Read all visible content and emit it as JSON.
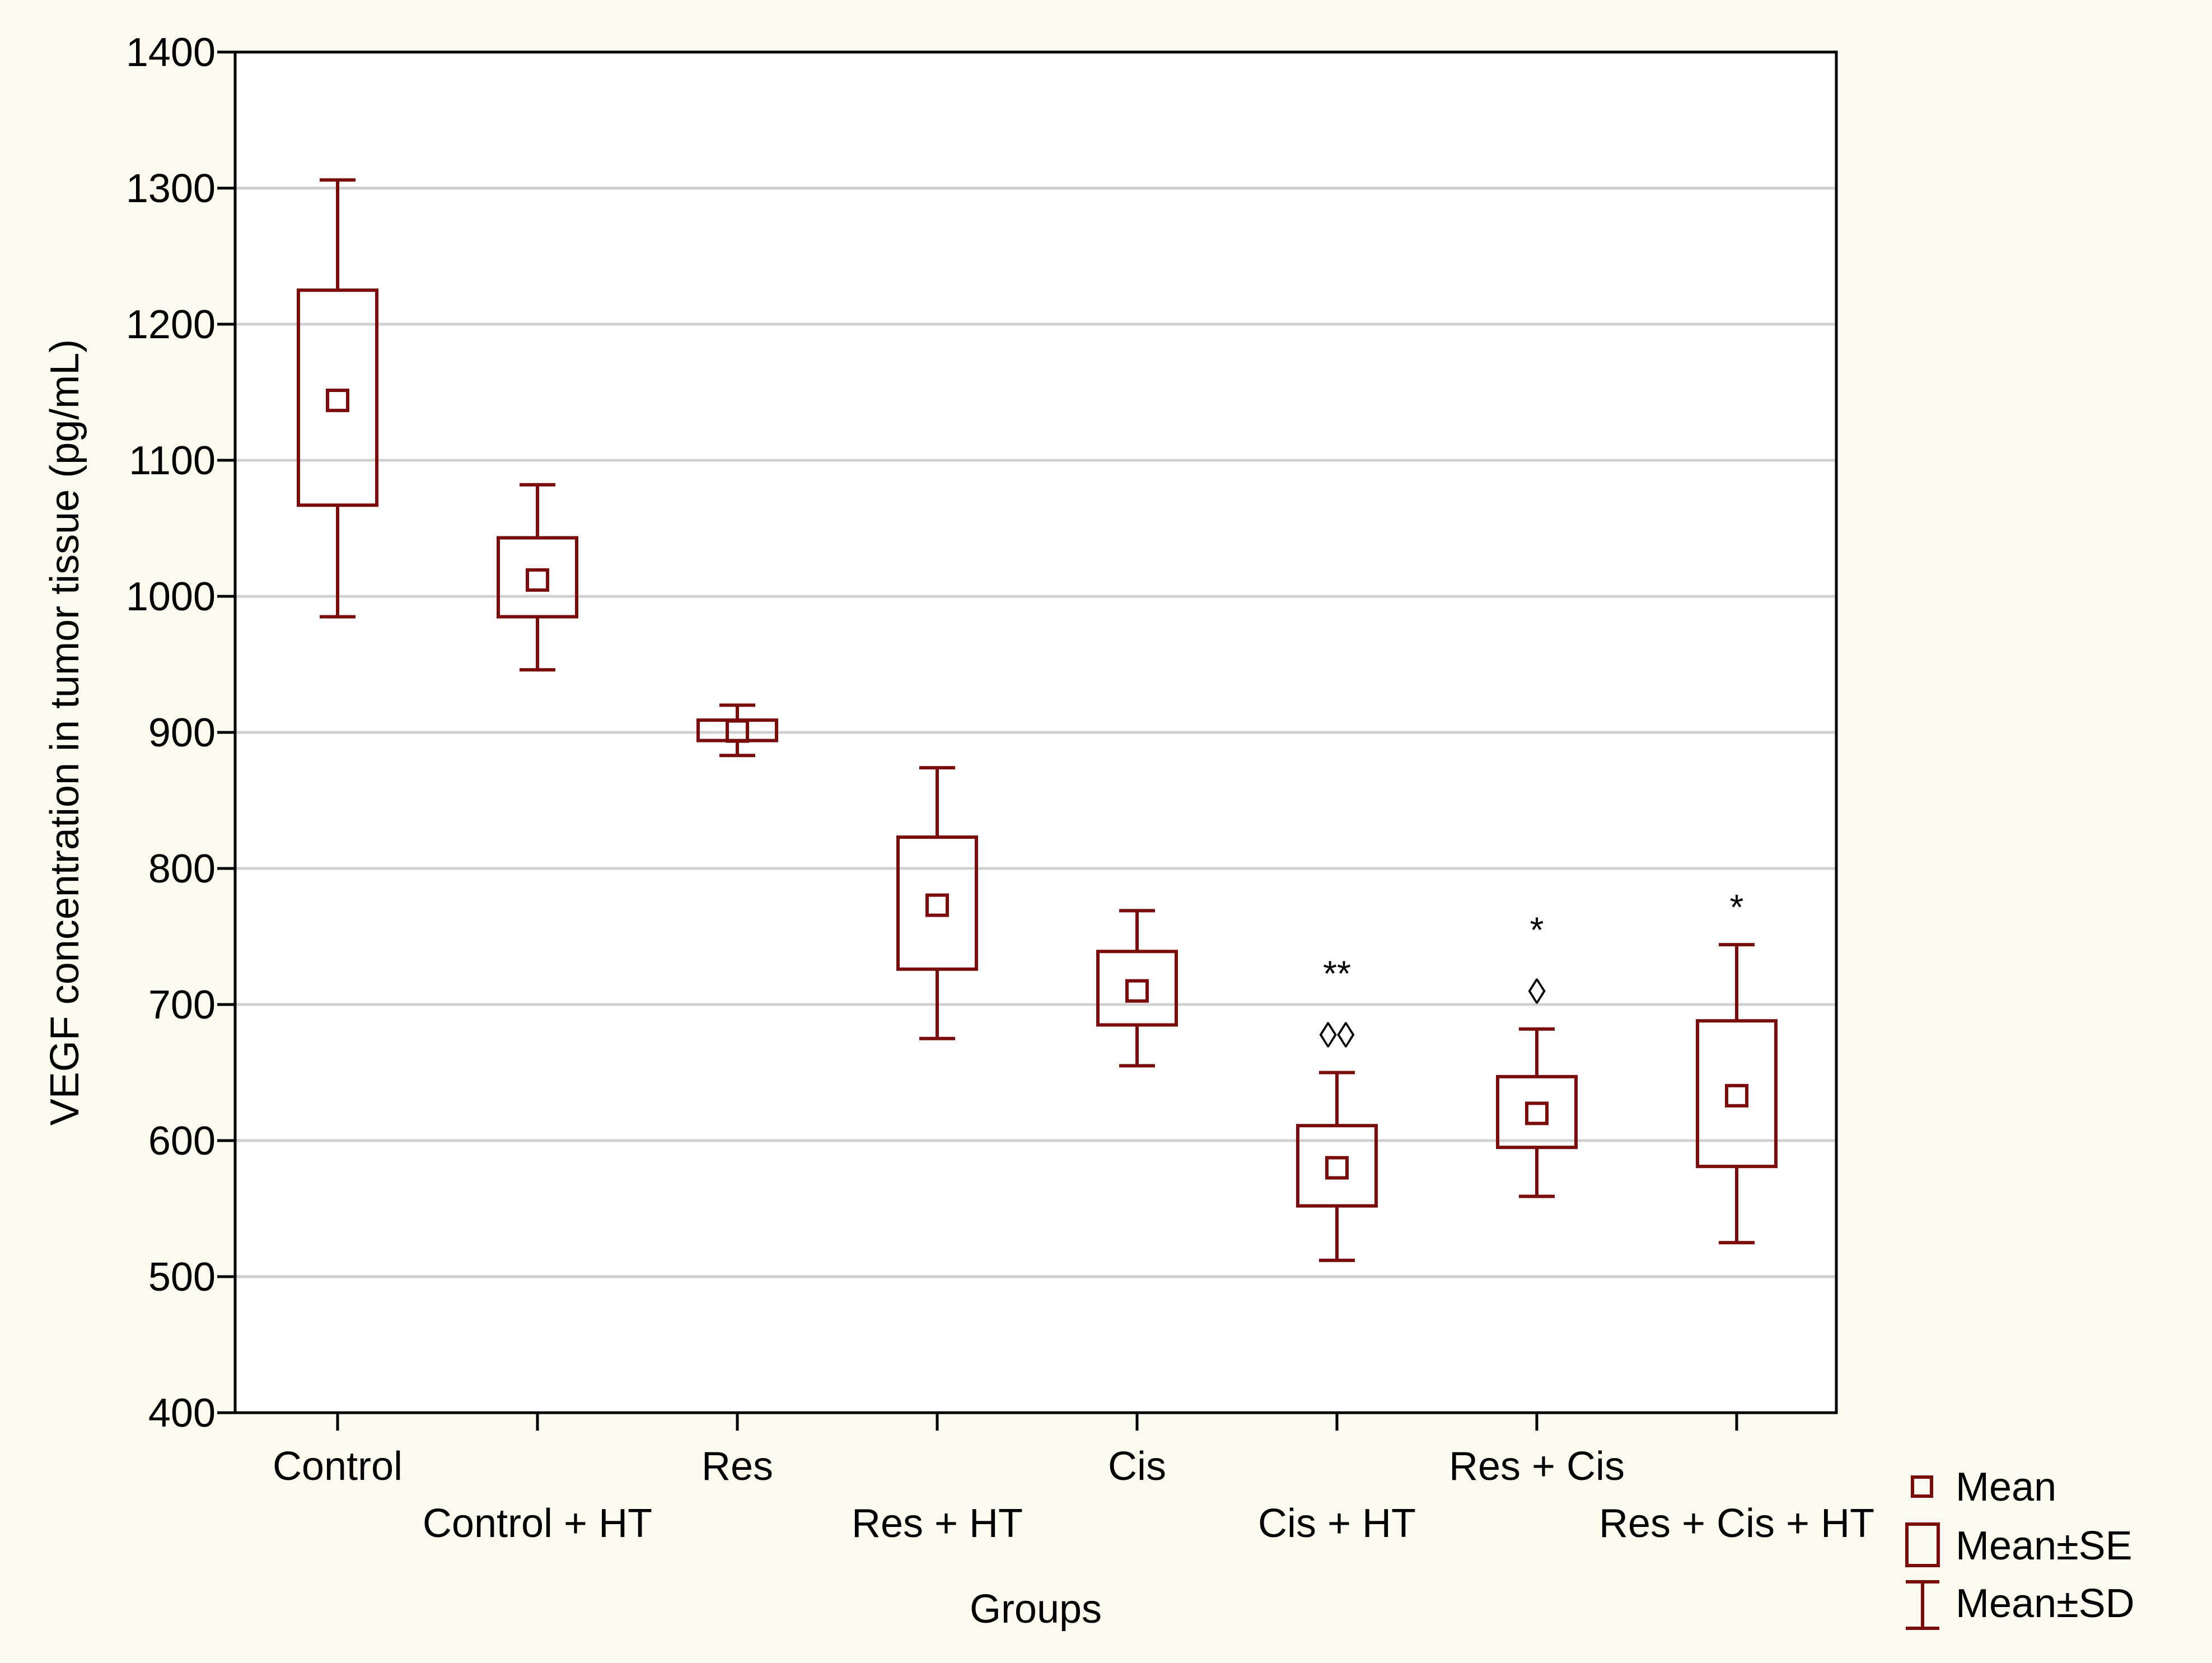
{
  "chart_data": {
    "type": "box",
    "title": "",
    "xlabel": "Groups",
    "ylabel": "VEGF concentration in tumor tissue (pg/mL)",
    "ylim": [
      400,
      1400
    ],
    "yticks": [
      400,
      500,
      600,
      700,
      800,
      900,
      1000,
      1100,
      1200,
      1300,
      1400
    ],
    "grid": true,
    "color": "#7b0c0c",
    "categories": [
      "Control",
      "Control + HT",
      "Res",
      "Res + HT",
      "Cis",
      "Cis + HT",
      "Res + Cis",
      "Res + Cis + HT"
    ],
    "series": [
      {
        "name": "Mean",
        "values": [
          1144,
          1012,
          901,
          773,
          710,
          580,
          620,
          633
        ]
      },
      {
        "name": "Mean−SE",
        "values": [
          1067,
          985,
          894,
          726,
          685,
          552,
          595,
          581
        ]
      },
      {
        "name": "Mean+SE",
        "values": [
          1225,
          1043,
          909,
          823,
          739,
          611,
          647,
          688
        ]
      },
      {
        "name": "Mean−SD",
        "values": [
          985,
          946,
          883,
          675,
          655,
          512,
          559,
          525
        ]
      },
      {
        "name": "Mean+SD",
        "values": [
          1306,
          1082,
          920,
          874,
          769,
          650,
          682,
          744
        ]
      }
    ],
    "annotations": [
      {
        "group": "Cis + HT",
        "symbols": [
          "**",
          "◊◊"
        ]
      },
      {
        "group": "Res + Cis",
        "symbols": [
          "*",
          "◊"
        ]
      },
      {
        "group": "Res + Cis + HT",
        "symbols": [
          "*"
        ]
      }
    ],
    "legend": {
      "position": "bottom-right",
      "entries": [
        "Mean",
        "Mean±SE",
        "Mean±SD"
      ]
    }
  }
}
